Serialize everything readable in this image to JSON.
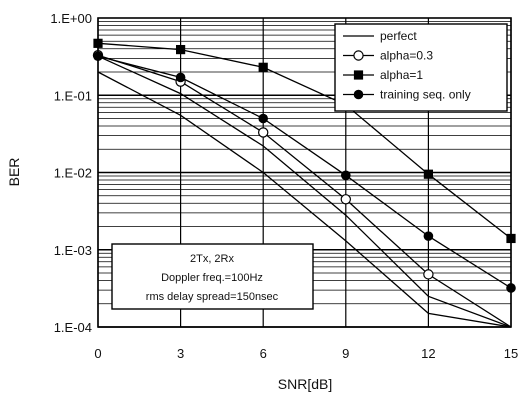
{
  "chart_data": {
    "type": "line",
    "xlabel": "SNR[dB]",
    "ylabel": "BER",
    "x": [
      0,
      3,
      6,
      9,
      12,
      15
    ],
    "x_ticks": [
      "0",
      "3",
      "6",
      "9",
      "12",
      "15"
    ],
    "y_scale": "log",
    "ylim": [
      0.0001,
      1
    ],
    "y_ticks": [
      {
        "value": 1,
        "label": "1.E+00"
      },
      {
        "value": 0.1,
        "label": "1.E-01"
      },
      {
        "value": 0.01,
        "label": "1.E-02"
      },
      {
        "value": 0.001,
        "label": "1.E-03"
      },
      {
        "value": 0.0001,
        "label": "1.E-04"
      }
    ],
    "grid": true,
    "legend_position": "top-right",
    "series": [
      {
        "name": "perfect",
        "marker": "none",
        "values": [
          0.2,
          0.055,
          0.01,
          0.0013,
          0.00015,
          4e-05
        ]
      },
      {
        "name": "alpha=0.3",
        "marker": "open-circle",
        "values": [
          0.33,
          0.15,
          0.033,
          0.0045,
          0.00048,
          5e-05
        ]
      },
      {
        "name": "alpha=1",
        "marker": "filled-square",
        "values": [
          0.47,
          0.39,
          0.23,
          0.075,
          0.0095,
          0.0014
        ]
      },
      {
        "name": "training seq. only",
        "marker": "filled-circle",
        "values": [
          0.32,
          0.17,
          0.05,
          0.0092,
          0.0015,
          0.00032
        ]
      }
    ],
    "unmarked_curves": [
      {
        "values": [
          0.32,
          0.105,
          0.022,
          0.0028,
          0.00025,
          6e-05
        ]
      }
    ],
    "annotation": [
      "2Tx, 2Rx",
      "Doppler freq.=100Hz",
      "rms delay spread=150nsec"
    ]
  }
}
